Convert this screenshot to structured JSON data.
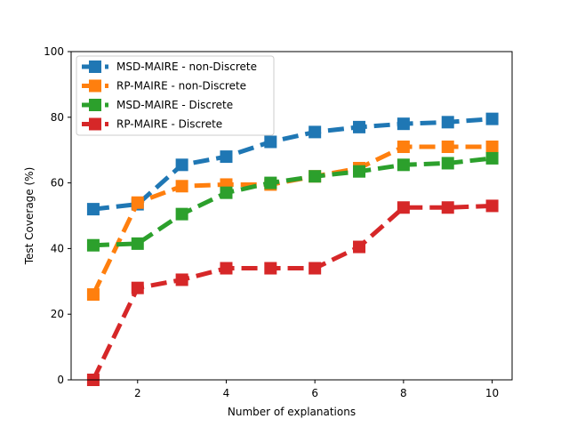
{
  "chart_data": {
    "type": "line",
    "title": "",
    "xlabel": "Number of explanations",
    "ylabel": "Test Coverage (%)",
    "xlim": [
      0.5,
      10.45
    ],
    "ylim": [
      0,
      100
    ],
    "xticks": [
      2,
      4,
      6,
      8,
      10
    ],
    "yticks": [
      0,
      20,
      40,
      60,
      80,
      100
    ],
    "legend_position": "top-left",
    "grid": false,
    "x": [
      1,
      2,
      3,
      4,
      5,
      6,
      7,
      8,
      9,
      10
    ],
    "series": [
      {
        "name": "MSD-MAIRE - non-Discrete",
        "color": "#1f77b4",
        "values": [
          52,
          53.5,
          65.5,
          68,
          72.5,
          75.5,
          77,
          78,
          78.5,
          79.5
        ]
      },
      {
        "name": "RP-MAIRE - non-Discrete",
        "color": "#ff7f0e",
        "values": [
          26,
          54,
          59,
          59.5,
          59.5,
          62,
          64.5,
          71,
          71,
          71
        ]
      },
      {
        "name": "MSD-MAIRE - Discrete",
        "color": "#2ca02c",
        "values": [
          41,
          41.5,
          50.5,
          57,
          60,
          62,
          63.5,
          65.5,
          66,
          67.5
        ]
      },
      {
        "name": "RP-MAIRE - Discrete",
        "color": "#d62728",
        "values": [
          0,
          28,
          30.5,
          34,
          34,
          34,
          40.5,
          52.5,
          52.5,
          53
        ]
      }
    ]
  }
}
